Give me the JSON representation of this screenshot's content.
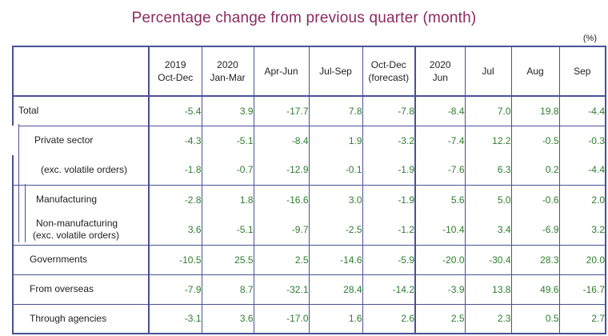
{
  "title": "Percentage change from previous quarter (month)",
  "unit": "(%)",
  "columns": [
    {
      "line1": "2019",
      "line2": "Oct-Dec"
    },
    {
      "line1": "2020",
      "line2": "Jan-Mar"
    },
    {
      "line1": "",
      "line2": "Apr-Jun"
    },
    {
      "line1": "",
      "line2": "Jul-Sep"
    },
    {
      "line1": "Oct-Dec",
      "line2": "(forecast)"
    },
    {
      "line1": "2020",
      "line2": "Jun"
    },
    {
      "line1": "",
      "line2": "Jul"
    },
    {
      "line1": "",
      "line2": "Aug"
    },
    {
      "line1": "",
      "line2": "Sep"
    }
  ],
  "rows": [
    {
      "label": "Total",
      "values": [
        "-5.4",
        "3.9",
        "-17.7",
        "7.8",
        "-7.8",
        "-8.4",
        "7.0",
        "19.8",
        "-4.4"
      ]
    },
    {
      "label": "Private sector",
      "values": [
        "-4.3",
        "-5.1",
        "-8.4",
        "1.9",
        "-3.2",
        "-7.4",
        "12.2",
        "-0.5",
        "-0.3"
      ]
    },
    {
      "label": "(exc. volatile orders)",
      "values": [
        "-1.8",
        "-0.7",
        "-12.9",
        "-0.1",
        "-1.9",
        "-7.6",
        "6.3",
        "0.2",
        "-4.4"
      ]
    },
    {
      "label": "Manufacturing",
      "values": [
        "-2.8",
        "1.8",
        "-16.6",
        "3.0",
        "-1.9",
        "5.6",
        "5.0",
        "-0.6",
        "2.0"
      ]
    },
    {
      "label": "Non-manufacturing",
      "label2": "(exc. volatile orders)",
      "values": [
        "3.6",
        "-5.1",
        "-9.7",
        "-2.5",
        "-1.2",
        "-10.4",
        "3.4",
        "-6.9",
        "3.2"
      ]
    },
    {
      "label": "Governments",
      "values": [
        "-10.5",
        "25.5",
        "2.5",
        "-14.6",
        "-5.9",
        "-20.0",
        "-30.4",
        "28.3",
        "20.0"
      ]
    },
    {
      "label": "From overseas",
      "values": [
        "-7.9",
        "8.7",
        "-32.1",
        "28.4",
        "-14.2",
        "-3.9",
        "13.8",
        "49.6",
        "-16.7"
      ]
    },
    {
      "label": "Through agencies",
      "values": [
        "-3.1",
        "3.6",
        "-17.0",
        "1.6",
        "2.6",
        "2.5",
        "2.3",
        "0.5",
        "2.7"
      ]
    }
  ]
}
